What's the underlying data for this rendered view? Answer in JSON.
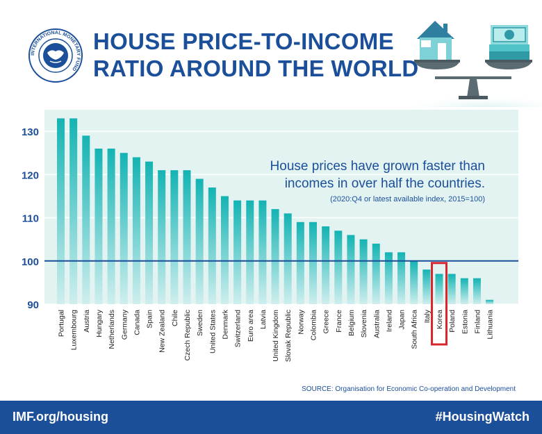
{
  "header": {
    "logo_text": "INTERNATIONAL MONETARY FUND",
    "title_line1": "HOUSE PRICE-TO-INCOME",
    "title_line2": "RATIO AROUND THE WORLD"
  },
  "chart_data": {
    "type": "bar",
    "title": "House prices have grown faster than incomes in over half the countries.",
    "subtitle": "(2020:Q4 or latest available index, 2015=100)",
    "categories": [
      "Portugal",
      "Luxembourg",
      "Austria",
      "Hungary",
      "Netherlands",
      "Germany",
      "Canada",
      "Spain",
      "New Zealand",
      "Chile",
      "Czech Republic",
      "Sweden",
      "United States",
      "Denmark",
      "Switzerland",
      "Euro area",
      "Latvia",
      "United Kingdom",
      "Slovak Republic",
      "Norway",
      "Colombia",
      "Greece",
      "France",
      "Belgium",
      "Slovenia",
      "Australia",
      "Ireland",
      "Japan",
      "South Africa",
      "Italy",
      "Korea",
      "Poland",
      "Estonia",
      "Finland",
      "Lithuania"
    ],
    "values": [
      133,
      133,
      129,
      126,
      126,
      125,
      124,
      123,
      121,
      121,
      121,
      119,
      117,
      115,
      114,
      114,
      114,
      112,
      111,
      109,
      109,
      108,
      107,
      106,
      105,
      104,
      102,
      102,
      100,
      98,
      97,
      97,
      96,
      96,
      91
    ],
    "ylim": [
      90,
      135
    ],
    "yticks": [
      90,
      100,
      110,
      120,
      130
    ],
    "reference_line": 100,
    "highlight": "Korea",
    "grid": true,
    "colors": {
      "bar_top": "#14b3b3",
      "bar_bottom": "#cfeeee",
      "background": "#e3f3f1",
      "axis_text": "#1b4f9a",
      "highlight_box": "#d9262c"
    }
  },
  "source": "SOURCE: Organisation for Economic Co-operation and Development",
  "footer": {
    "left": "IMF.org/housing",
    "right": "#HousingWatch"
  }
}
